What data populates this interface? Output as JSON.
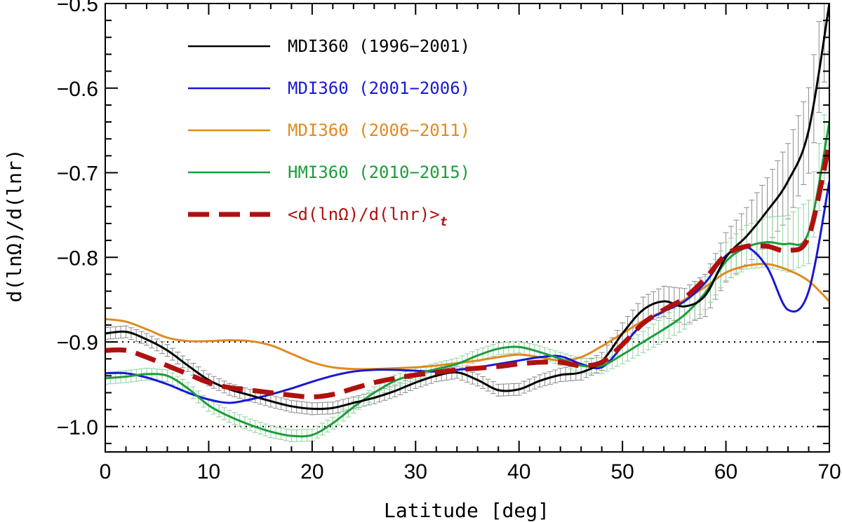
{
  "chart_data": {
    "type": "line",
    "title": "",
    "xlabel": "Latitude [deg]",
    "ylabel": "d(lnΩ)/d(lnr)",
    "xlim": [
      0,
      70
    ],
    "ylim": [
      -1.03,
      -0.5
    ],
    "x_ticks": [
      0,
      10,
      20,
      30,
      40,
      50,
      60,
      70
    ],
    "x_tick_labels": [
      "0",
      "10",
      "20",
      "30",
      "40",
      "50",
      "60",
      "70"
    ],
    "y_ticks": [
      -1.0,
      -0.9,
      -0.8,
      -0.7,
      -0.6,
      -0.5
    ],
    "y_tick_labels": [
      "−1.0",
      "−0.9",
      "−0.8",
      "−0.7",
      "−0.6",
      "−0.5"
    ],
    "reference_lines": [
      -0.9,
      -1.0
    ],
    "legend_position": "top-left",
    "series": [
      {
        "name": "MDI360 (1996−2001)",
        "color": "#000000",
        "style": "solid",
        "errorbars": true,
        "points": [
          [
            0,
            -0.89
          ],
          [
            2,
            -0.888
          ],
          [
            4,
            -0.897
          ],
          [
            6,
            -0.91
          ],
          [
            8,
            -0.928
          ],
          [
            10,
            -0.945
          ],
          [
            12,
            -0.956
          ],
          [
            14,
            -0.963
          ],
          [
            16,
            -0.97
          ],
          [
            18,
            -0.976
          ],
          [
            20,
            -0.979
          ],
          [
            22,
            -0.978
          ],
          [
            24,
            -0.972
          ],
          [
            26,
            -0.966
          ],
          [
            28,
            -0.958
          ],
          [
            30,
            -0.948
          ],
          [
            32,
            -0.94
          ],
          [
            34,
            -0.936
          ],
          [
            36,
            -0.945
          ],
          [
            38,
            -0.957
          ],
          [
            40,
            -0.956
          ],
          [
            42,
            -0.946
          ],
          [
            44,
            -0.939
          ],
          [
            46,
            -0.936
          ],
          [
            48,
            -0.923
          ],
          [
            50,
            -0.89
          ],
          [
            52,
            -0.862
          ],
          [
            54,
            -0.852
          ],
          [
            56,
            -0.858
          ],
          [
            58,
            -0.845
          ],
          [
            60,
            -0.8
          ],
          [
            62,
            -0.775
          ],
          [
            64,
            -0.745
          ],
          [
            66,
            -0.71
          ],
          [
            68,
            -0.65
          ],
          [
            70,
            -0.5
          ]
        ]
      },
      {
        "name": "MDI360 (2001−2006)",
        "color": "#1818d6",
        "style": "solid",
        "errorbars": false,
        "points": [
          [
            0,
            -0.937
          ],
          [
            2,
            -0.937
          ],
          [
            4,
            -0.942
          ],
          [
            6,
            -0.95
          ],
          [
            8,
            -0.96
          ],
          [
            10,
            -0.968
          ],
          [
            12,
            -0.972
          ],
          [
            14,
            -0.968
          ],
          [
            16,
            -0.962
          ],
          [
            18,
            -0.955
          ],
          [
            20,
            -0.947
          ],
          [
            22,
            -0.94
          ],
          [
            24,
            -0.935
          ],
          [
            26,
            -0.933
          ],
          [
            28,
            -0.933
          ],
          [
            30,
            -0.934
          ],
          [
            32,
            -0.935
          ],
          [
            34,
            -0.933
          ],
          [
            36,
            -0.93
          ],
          [
            38,
            -0.926
          ],
          [
            40,
            -0.922
          ],
          [
            42,
            -0.918
          ],
          [
            44,
            -0.917
          ],
          [
            46,
            -0.926
          ],
          [
            48,
            -0.93
          ],
          [
            50,
            -0.905
          ],
          [
            52,
            -0.878
          ],
          [
            54,
            -0.864
          ],
          [
            56,
            -0.852
          ],
          [
            58,
            -0.83
          ],
          [
            60,
            -0.798
          ],
          [
            62,
            -0.788
          ],
          [
            64,
            -0.812
          ],
          [
            66,
            -0.862
          ],
          [
            68,
            -0.84
          ],
          [
            70,
            -0.71
          ]
        ]
      },
      {
        "name": "MDI360 (2006−2011)",
        "color": "#e08a1e",
        "style": "solid",
        "errorbars": false,
        "points": [
          [
            0,
            -0.873
          ],
          [
            2,
            -0.876
          ],
          [
            4,
            -0.885
          ],
          [
            6,
            -0.895
          ],
          [
            8,
            -0.899
          ],
          [
            10,
            -0.899
          ],
          [
            12,
            -0.898
          ],
          [
            14,
            -0.899
          ],
          [
            16,
            -0.904
          ],
          [
            18,
            -0.914
          ],
          [
            20,
            -0.924
          ],
          [
            22,
            -0.93
          ],
          [
            24,
            -0.932
          ],
          [
            26,
            -0.932
          ],
          [
            28,
            -0.931
          ],
          [
            30,
            -0.93
          ],
          [
            32,
            -0.928
          ],
          [
            34,
            -0.925
          ],
          [
            36,
            -0.922
          ],
          [
            38,
            -0.918
          ],
          [
            40,
            -0.915
          ],
          [
            42,
            -0.918
          ],
          [
            44,
            -0.922
          ],
          [
            46,
            -0.918
          ],
          [
            48,
            -0.905
          ],
          [
            50,
            -0.89
          ],
          [
            52,
            -0.875
          ],
          [
            54,
            -0.863
          ],
          [
            56,
            -0.85
          ],
          [
            58,
            -0.835
          ],
          [
            60,
            -0.818
          ],
          [
            62,
            -0.81
          ],
          [
            64,
            -0.808
          ],
          [
            66,
            -0.815
          ],
          [
            68,
            -0.828
          ],
          [
            70,
            -0.852
          ]
        ]
      },
      {
        "name": "HMI360 (2010−2015)",
        "color": "#1b9e3a",
        "style": "solid",
        "errorbars": true,
        "points": [
          [
            0,
            -0.943
          ],
          [
            2,
            -0.941
          ],
          [
            4,
            -0.938
          ],
          [
            6,
            -0.94
          ],
          [
            8,
            -0.955
          ],
          [
            10,
            -0.975
          ],
          [
            12,
            -0.988
          ],
          [
            14,
            -0.998
          ],
          [
            16,
            -1.006
          ],
          [
            18,
            -1.011
          ],
          [
            20,
            -1.01
          ],
          [
            22,
            -0.996
          ],
          [
            24,
            -0.977
          ],
          [
            26,
            -0.96
          ],
          [
            28,
            -0.946
          ],
          [
            30,
            -0.938
          ],
          [
            32,
            -0.932
          ],
          [
            34,
            -0.926
          ],
          [
            36,
            -0.916
          ],
          [
            38,
            -0.908
          ],
          [
            40,
            -0.906
          ],
          [
            42,
            -0.912
          ],
          [
            44,
            -0.92
          ],
          [
            46,
            -0.928
          ],
          [
            48,
            -0.928
          ],
          [
            50,
            -0.915
          ],
          [
            52,
            -0.9
          ],
          [
            54,
            -0.885
          ],
          [
            56,
            -0.868
          ],
          [
            58,
            -0.842
          ],
          [
            60,
            -0.805
          ],
          [
            62,
            -0.788
          ],
          [
            64,
            -0.782
          ],
          [
            66,
            -0.784
          ],
          [
            68,
            -0.77
          ],
          [
            70,
            -0.64
          ]
        ]
      },
      {
        "name": "<d(lnΩ)/d(lnr)>",
        "subscript": "t",
        "color": "#b01010",
        "style": "dashed",
        "errorbars": false,
        "points": [
          [
            0,
            -0.91
          ],
          [
            2,
            -0.91
          ],
          [
            4,
            -0.918
          ],
          [
            6,
            -0.928
          ],
          [
            8,
            -0.938
          ],
          [
            10,
            -0.948
          ],
          [
            12,
            -0.954
          ],
          [
            14,
            -0.957
          ],
          [
            16,
            -0.96
          ],
          [
            18,
            -0.963
          ],
          [
            20,
            -0.965
          ],
          [
            22,
            -0.962
          ],
          [
            24,
            -0.955
          ],
          [
            26,
            -0.948
          ],
          [
            28,
            -0.943
          ],
          [
            30,
            -0.939
          ],
          [
            32,
            -0.936
          ],
          [
            34,
            -0.933
          ],
          [
            36,
            -0.931
          ],
          [
            38,
            -0.929
          ],
          [
            40,
            -0.926
          ],
          [
            42,
            -0.924
          ],
          [
            44,
            -0.924
          ],
          [
            46,
            -0.928
          ],
          [
            48,
            -0.924
          ],
          [
            50,
            -0.903
          ],
          [
            52,
            -0.878
          ],
          [
            54,
            -0.862
          ],
          [
            56,
            -0.848
          ],
          [
            58,
            -0.825
          ],
          [
            60,
            -0.797
          ],
          [
            62,
            -0.787
          ],
          [
            64,
            -0.787
          ],
          [
            66,
            -0.792
          ],
          [
            68,
            -0.775
          ],
          [
            70,
            -0.665
          ]
        ]
      }
    ]
  }
}
